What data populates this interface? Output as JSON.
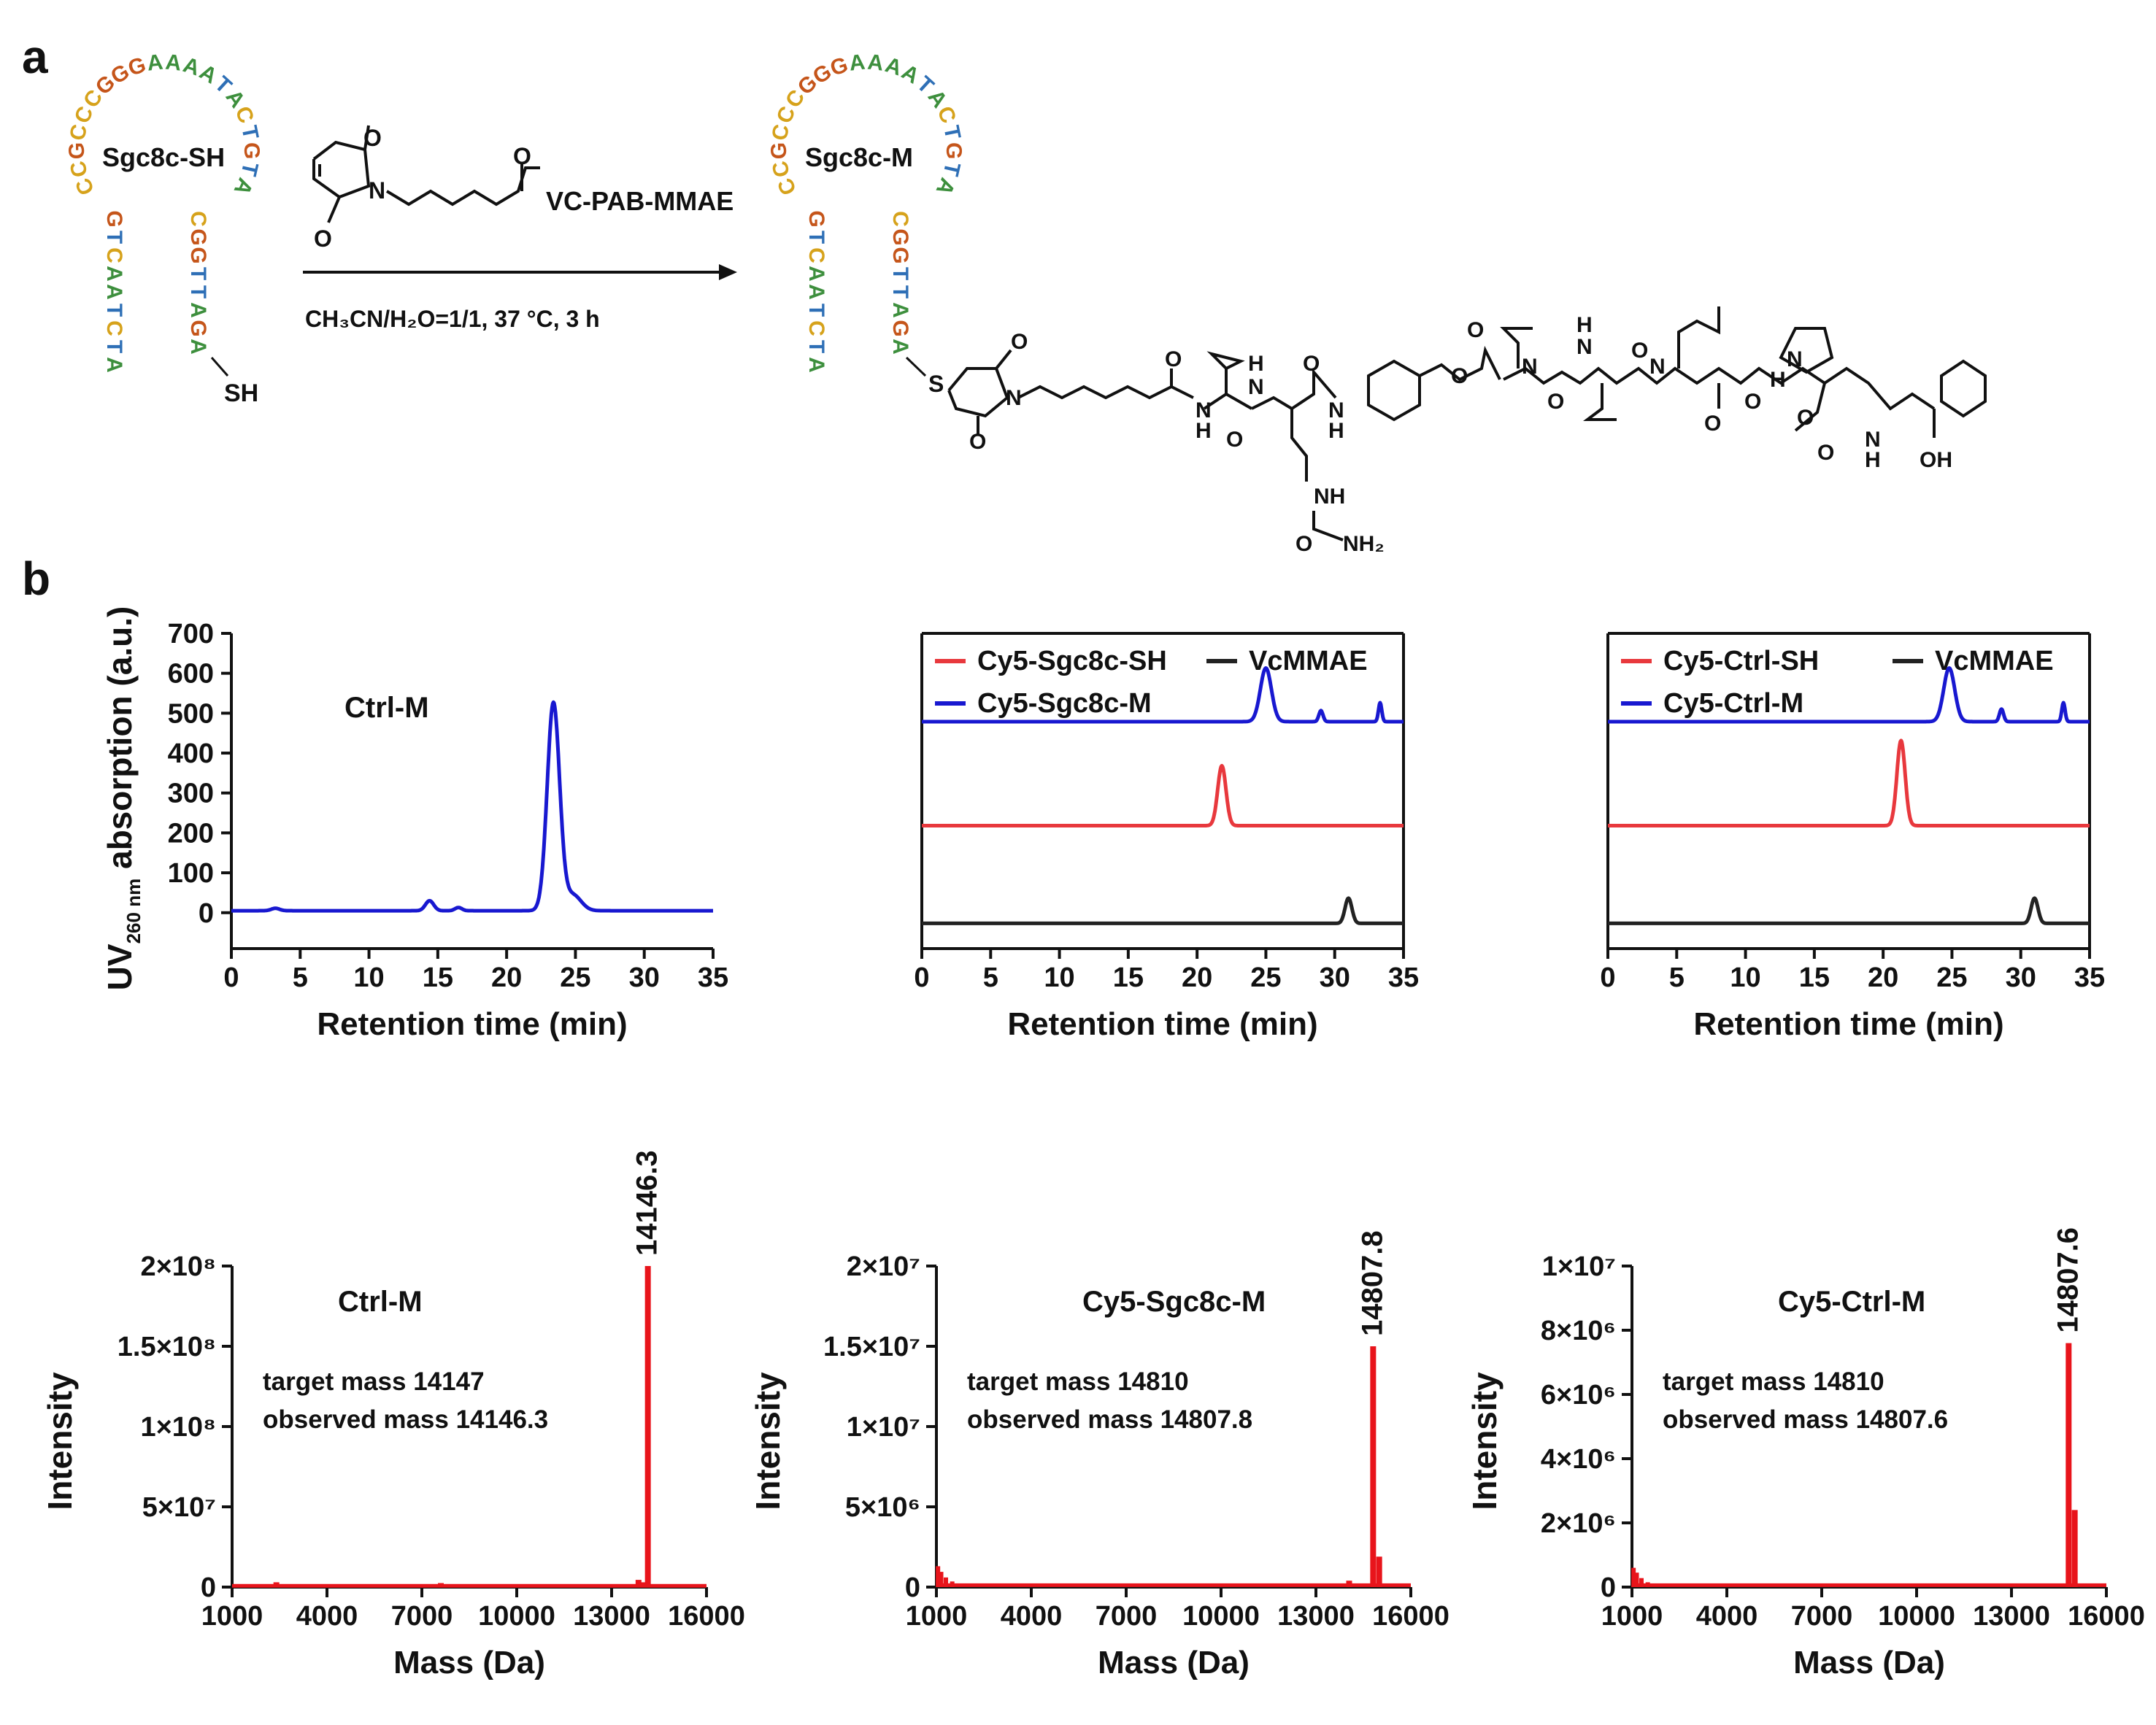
{
  "panel_labels": {
    "a": "a",
    "b": "b"
  },
  "scheme": {
    "reactant_label": "Sgc8c-SH",
    "product_label": "Sgc8c-M",
    "thiol": "SH",
    "thioether_s": "S",
    "loop_sequence": "CCGCCCGGGAAAATACTGTA",
    "stem_left": "GTCAATCTA",
    "stem_right": "CGGTTAGA",
    "reagent": {
      "label": "VC-PAB-MMAE",
      "o1": "O",
      "o2": "O",
      "o3": "O",
      "n": "N"
    },
    "conditions": "CH₃CN/H₂O=1/1, 37 °C, 3 h",
    "structure_atoms": {
      "O": "O",
      "N": "N",
      "H": "H",
      "NH": "NH",
      "NH2": "NH₂",
      "OH": "OH"
    }
  },
  "chart_data": [
    {
      "type": "line",
      "id": "hplc-ctrl-m",
      "annotation": "Ctrl-M",
      "xlabel": "Retention time (min)",
      "ylabel": "UV260 nm absorption (a.u.)",
      "ylabel_main": "UV",
      "ylabel_sub": "260 nm",
      "ylabel_rest": " absorption (a.u.)",
      "xlim": [
        0,
        35
      ],
      "ylim": [
        -90,
        700
      ],
      "xticks": [
        "0",
        "5",
        "10",
        "15",
        "20",
        "25",
        "30",
        "35"
      ],
      "yticks": [
        "0",
        "100",
        "200",
        "300",
        "400",
        "500",
        "600",
        "700"
      ],
      "series": [
        {
          "name": "Ctrl-M",
          "color": "#1818d0",
          "baseline": 5,
          "peaks": [
            [
              3.2,
              6,
              0.3
            ],
            [
              14.4,
              25,
              0.3
            ],
            [
              16.5,
              8,
              0.25
            ],
            [
              23.4,
              520,
              0.45
            ],
            [
              24.8,
              40,
              0.6
            ]
          ]
        }
      ]
    },
    {
      "type": "line",
      "id": "hplc-cy5-sgc8c",
      "xlabel": "Retention time (min)",
      "xlim": [
        0,
        35
      ],
      "xticks": [
        "0",
        "5",
        "10",
        "15",
        "20",
        "25",
        "30",
        "35"
      ],
      "legend": {
        "placement": "top-left"
      },
      "series": [
        {
          "name": "Cy5-Sgc8c-M",
          "color": "#1818d0",
          "baseline": 0.72,
          "peaks": [
            [
              25.0,
              0.17,
              0.4
            ],
            [
              29.0,
              0.035,
              0.15
            ],
            [
              33.3,
              0.06,
              0.12
            ]
          ]
        },
        {
          "name": "Cy5-Sgc8c-SH",
          "color": "#e8383d",
          "baseline": 0.39,
          "peaks": [
            [
              21.8,
              0.19,
              0.3
            ]
          ]
        },
        {
          "name": "VcMMAE",
          "color": "#222222",
          "baseline": 0.08,
          "peaks": [
            [
              31.0,
              0.08,
              0.25
            ]
          ]
        }
      ]
    },
    {
      "type": "line",
      "id": "hplc-cy5-ctrl",
      "xlabel": "Retention time (min)",
      "xlim": [
        0,
        35
      ],
      "xticks": [
        "0",
        "5",
        "10",
        "15",
        "20",
        "25",
        "30",
        "35"
      ],
      "legend": {
        "placement": "top-left"
      },
      "series": [
        {
          "name": "Cy5-Ctrl-M",
          "color": "#1818d0",
          "baseline": 0.72,
          "peaks": [
            [
              24.8,
              0.17,
              0.4
            ],
            [
              28.6,
              0.04,
              0.15
            ],
            [
              33.1,
              0.06,
              0.12
            ]
          ]
        },
        {
          "name": "Cy5-Ctrl-SH",
          "color": "#e8383d",
          "baseline": 0.39,
          "peaks": [
            [
              21.3,
              0.27,
              0.3
            ]
          ]
        },
        {
          "name": "VcMMAE",
          "color": "#222222",
          "baseline": 0.08,
          "peaks": [
            [
              31.0,
              0.08,
              0.25
            ]
          ]
        }
      ]
    },
    {
      "type": "bar",
      "id": "ms-ctrl-m",
      "annotation": "Ctrl-M",
      "target_text": "target mass 14147",
      "observed_text": "observed mass 14146.3",
      "peak_label": "14146.3",
      "xlabel": "Mass (Da)",
      "ylabel": "Intensity",
      "xlim": [
        1000,
        16000
      ],
      "ylim": [
        0,
        200000000
      ],
      "xticks": [
        "1000",
        "4000",
        "7000",
        "10000",
        "13000",
        "16000"
      ],
      "yticks": [
        "0",
        "5×10⁷",
        "1×10⁸",
        "1.5×10⁸",
        "2×10⁸"
      ],
      "color": "#e8141b",
      "peaks": [
        [
          14146.3,
          200000000
        ],
        [
          14000,
          3000000
        ],
        [
          2400,
          3000000
        ],
        [
          7600,
          2500000
        ],
        [
          13850,
          4500000
        ]
      ],
      "noise_floor": 800000
    },
    {
      "type": "bar",
      "id": "ms-cy5-sgc8c-m",
      "annotation": "Cy5-Sgc8c-M",
      "target_text": "target mass 14810",
      "observed_text": "observed mass 14807.8",
      "peak_label": "14807.8",
      "xlabel": "Mass (Da)",
      "ylabel": "Intensity",
      "xlim": [
        1000,
        16000
      ],
      "ylim": [
        0,
        20000000
      ],
      "xticks": [
        "1000",
        "4000",
        "7000",
        "10000",
        "13000",
        "16000"
      ],
      "yticks": [
        "0",
        "5×10⁶",
        "1×10⁷",
        "1.5×10⁷",
        "2×10⁷"
      ],
      "color": "#e8141b",
      "peaks": [
        [
          14807.8,
          15000000
        ],
        [
          15000,
          1900000
        ],
        [
          14050,
          400000
        ]
      ],
      "low_mass_tail": [
        [
          1050,
          1300000
        ],
        [
          1150,
          950000
        ],
        [
          1300,
          600000
        ],
        [
          1500,
          350000
        ]
      ],
      "noise_floor": 120000
    },
    {
      "type": "bar",
      "id": "ms-cy5-ctrl-m",
      "annotation": "Cy5-Ctrl-M",
      "target_text": "target mass 14810",
      "observed_text": "observed mass 14807.6",
      "peak_label": "14807.6",
      "xlabel": "Mass (Da)",
      "ylabel": "Intensity",
      "xlim": [
        1000,
        16000
      ],
      "ylim": [
        0,
        10000000
      ],
      "xticks": [
        "1000",
        "4000",
        "7000",
        "10000",
        "13000",
        "16000"
      ],
      "yticks": [
        "0",
        "2×10⁶",
        "4×10⁶",
        "6×10⁶",
        "8×10⁶",
        "1×10⁷"
      ],
      "color": "#e8141b",
      "peaks": [
        [
          14807.6,
          7600000
        ],
        [
          15000,
          2400000
        ]
      ],
      "low_mass_tail": [
        [
          1050,
          600000
        ],
        [
          1150,
          450000
        ],
        [
          1300,
          280000
        ],
        [
          1500,
          150000
        ]
      ],
      "noise_floor": 60000
    }
  ]
}
